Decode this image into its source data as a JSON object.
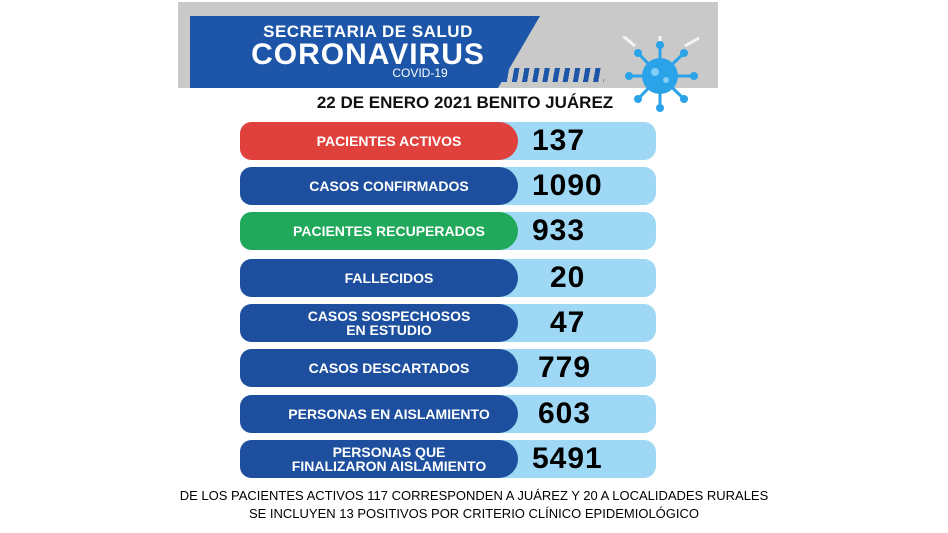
{
  "header": {
    "line1": "SECRETARIA DE SALUD",
    "line2": "CORONAVIRUS",
    "line3": "COVID-19"
  },
  "date_line": "22 DE ENERO 2021 BENITO JUÁREZ",
  "rows": [
    {
      "label": "PACIENTES ACTIVOS",
      "value": "137",
      "color": "#e0413c"
    },
    {
      "label": "CASOS CONFIRMADOS",
      "value": "1090",
      "color": "#1d4f9e"
    },
    {
      "label": "PACIENTES RECUPERADOS",
      "value": "933",
      "color": "#21a95b"
    },
    {
      "label": "FALLECIDOS",
      "value": "20",
      "color": "#1d4f9e"
    },
    {
      "label_line1": "CASOS SOSPECHOSOS",
      "label_line2": "EN ESTUDIO",
      "value": "47",
      "color": "#1d4f9e"
    },
    {
      "label": "CASOS DESCARTADOS",
      "value": "779",
      "color": "#1d4f9e"
    },
    {
      "label": "PERSONAS EN AISLAMIENTO",
      "value": "603",
      "color": "#1d4f9e"
    },
    {
      "label_line1": "PERSONAS QUE",
      "label_line2": "FINALIZARON AISLAMIENTO",
      "value": "5491",
      "color": "#1d4f9e"
    }
  ],
  "footer": {
    "line1": "DE LOS PACIENTES ACTIVOS 117 CORRESPONDEN A JUÁREZ Y 20 A LOCALIDADES RURALES",
    "line2": "SE INCLUYEN 13 POSITIVOS  POR  CRITERIO CLÍNICO EPIDEMIOLÓGICO"
  },
  "icons": {
    "virus": "virus-icon"
  }
}
